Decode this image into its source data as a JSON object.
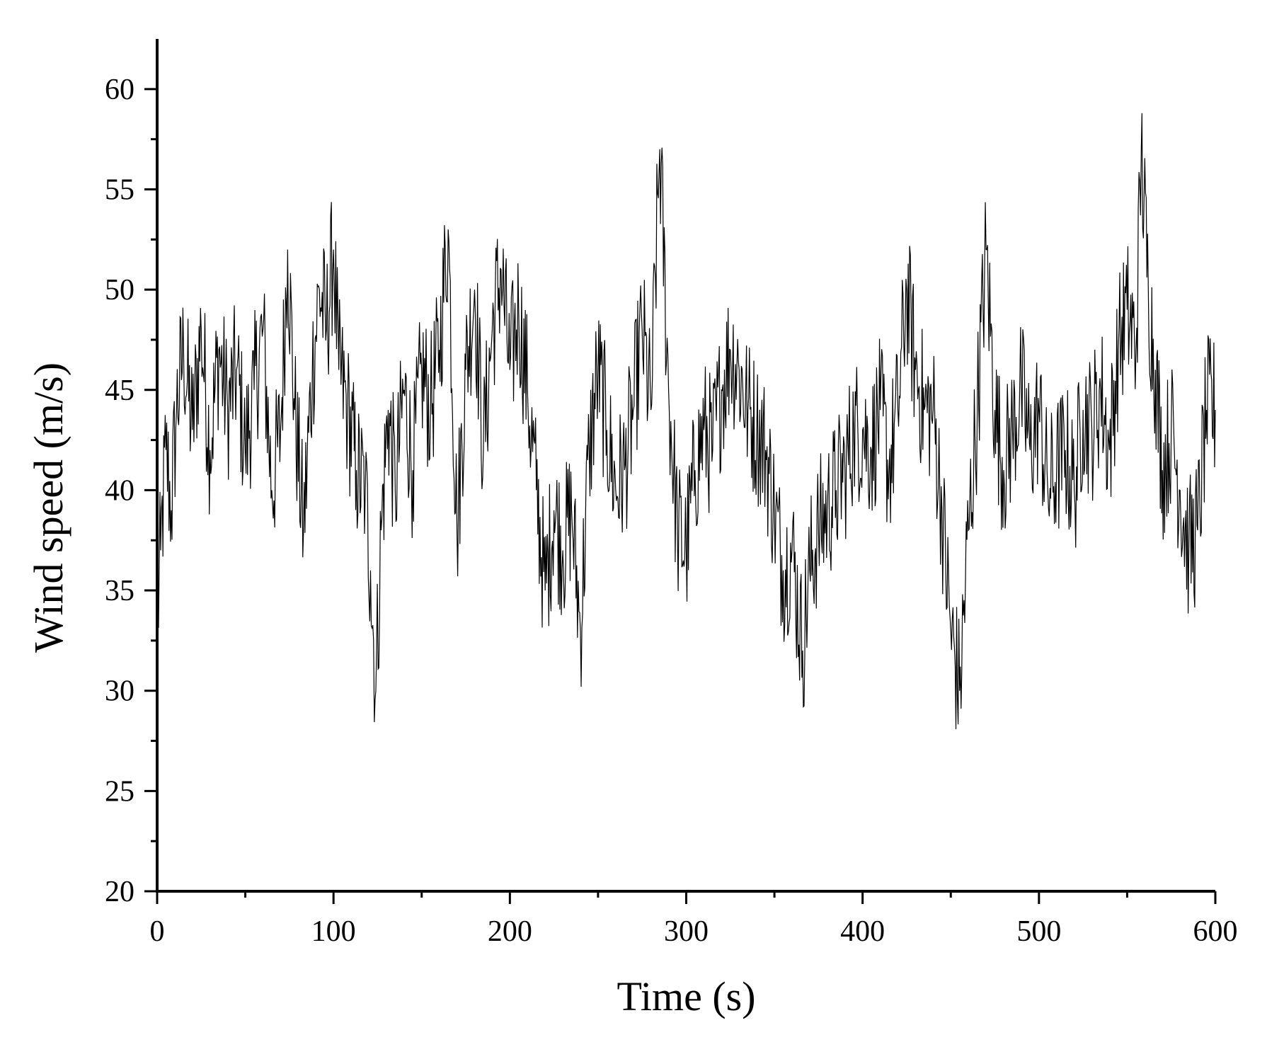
{
  "chart_data": {
    "type": "line",
    "title": "",
    "xlabel": "Time (s)",
    "ylabel": "Wind speed (m/s)",
    "xlim": [
      0,
      600
    ],
    "ylim": [
      20,
      62.5
    ],
    "xticks": [
      0,
      100,
      200,
      300,
      400,
      500,
      600
    ],
    "yticks": [
      20,
      25,
      30,
      35,
      40,
      45,
      50,
      55,
      60
    ],
    "grid": false,
    "legend": "none",
    "line_color": "#000000",
    "series": [
      {
        "x": [
          0,
          2,
          5,
          8,
          11,
          15,
          20,
          25,
          30,
          35,
          40,
          45,
          50,
          55,
          60,
          65,
          70,
          74,
          78,
          83,
          88,
          92,
          96,
          100,
          103,
          108,
          113,
          118,
          121,
          124,
          127,
          131,
          135,
          140,
          145,
          150,
          155,
          160,
          165,
          170,
          175,
          180,
          185,
          190,
          195,
          200,
          205,
          210,
          215,
          220,
          225,
          230,
          235,
          240,
          245,
          250,
          255,
          260,
          265,
          270,
          275,
          280,
          285,
          290,
          295,
          300,
          305,
          310,
          315,
          320,
          325,
          330,
          335,
          340,
          345,
          350,
          355,
          360,
          366,
          370,
          375,
          380,
          385,
          390,
          395,
          400,
          405,
          410,
          415,
          420,
          425,
          430,
          435,
          440,
          445,
          450,
          455,
          460,
          465,
          470,
          475,
          480,
          485,
          490,
          495,
          500,
          505,
          510,
          515,
          520,
          525,
          530,
          535,
          540,
          545,
          550,
          555,
          558,
          562,
          566,
          570,
          575,
          580,
          585,
          590,
          595,
          600
        ],
        "y": [
          33,
          37,
          42,
          39,
          44,
          47,
          43,
          48,
          42,
          47,
          44,
          46,
          42,
          45,
          48,
          40,
          43,
          52,
          44,
          38,
          46,
          50,
          48,
          52,
          46,
          44,
          41,
          40,
          36,
          30,
          38,
          44,
          40,
          45,
          41,
          46,
          44,
          47,
          53,
          38,
          46,
          50,
          42,
          48,
          51,
          46,
          49,
          45,
          40,
          35,
          39,
          37,
          39,
          33,
          42,
          46,
          43,
          40,
          41,
          44,
          48,
          44,
          57,
          45,
          38,
          37,
          41,
          43,
          42,
          45,
          47,
          46,
          44,
          43,
          42,
          39,
          36,
          37,
          32,
          36,
          38,
          39,
          40,
          41,
          43,
          43,
          42,
          44,
          41,
          44,
          50,
          46,
          44,
          44,
          39,
          33,
          30,
          38,
          44,
          52,
          44,
          41,
          43,
          45,
          42,
          44,
          40,
          41,
          42,
          40,
          44,
          43,
          45,
          42,
          47,
          49,
          47,
          57,
          50,
          46,
          41,
          43,
          40,
          37,
          38,
          44,
          44
        ]
      }
    ]
  }
}
